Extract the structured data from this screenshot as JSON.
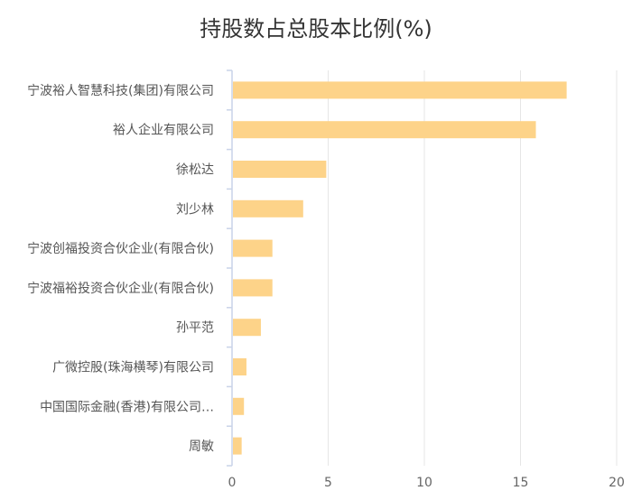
{
  "chart_data": {
    "type": "bar",
    "orientation": "horizontal",
    "title": "持股数占总股本比例(%)",
    "categories": [
      "宁波裕人智慧科技(集团)有限公司",
      "裕人企业有限公司",
      "徐松达",
      "刘少林",
      "宁波创福投资合伙企业(有限合伙)",
      "宁波福裕投资合伙企业(有限合伙)",
      "孙平范",
      "广微控股(珠海横琴)有限公司",
      "中国国际金融(香港)有限公司…",
      "周敏"
    ],
    "values": [
      17.4,
      15.8,
      4.9,
      3.7,
      2.1,
      2.1,
      1.5,
      0.75,
      0.62,
      0.5
    ],
    "xlim": [
      0,
      20
    ],
    "xticks": [
      0,
      5,
      10,
      15,
      20
    ],
    "xlabel": "",
    "ylabel": "",
    "grid": true,
    "bar_color": "#FDD389",
    "axis_color": "#C9D3E8",
    "grid_color": "#E6E6E6"
  }
}
